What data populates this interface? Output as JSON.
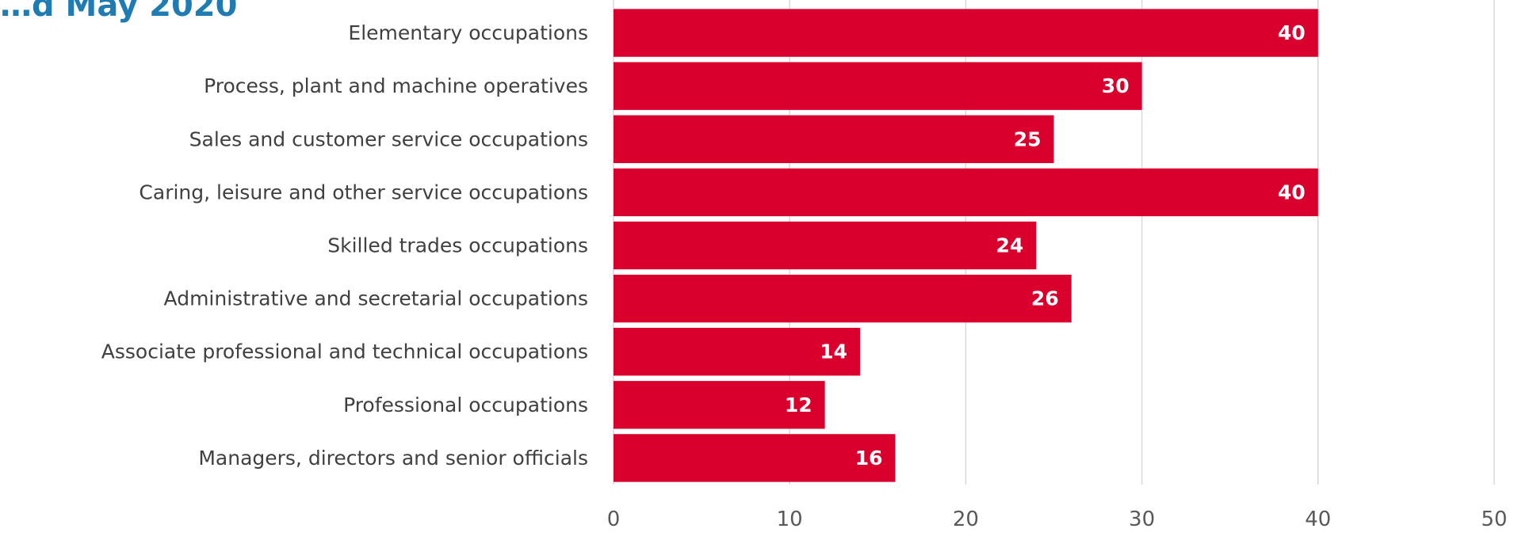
{
  "page_title": "…d May 2020",
  "colors": {
    "bar": "#d9002d",
    "title": "#1f7cb2",
    "grid": "#d9d9d9",
    "axis_text": "#595959"
  },
  "chart_data": {
    "type": "bar",
    "orientation": "horizontal",
    "title": "",
    "xlabel": "",
    "ylabel": "",
    "categories": [
      "Elementary occupations",
      "Process, plant and machine operatives",
      "Sales and customer service occupations",
      "Caring, leisure and other service occupations",
      "Skilled trades occupations",
      "Administrative and secretarial occupations",
      "Associate professional and technical occupations",
      "Professional occupations",
      "Managers, directors and senior officials"
    ],
    "values": [
      40,
      30,
      25,
      40,
      24,
      26,
      14,
      12,
      16
    ],
    "data_labels": [
      "40",
      "30",
      "25",
      "40",
      "24",
      "26",
      "14",
      "12",
      "16"
    ],
    "xlim": [
      0,
      50
    ],
    "xticks": [
      0,
      10,
      20,
      30,
      40,
      50
    ],
    "grid": true,
    "legend": "none"
  }
}
